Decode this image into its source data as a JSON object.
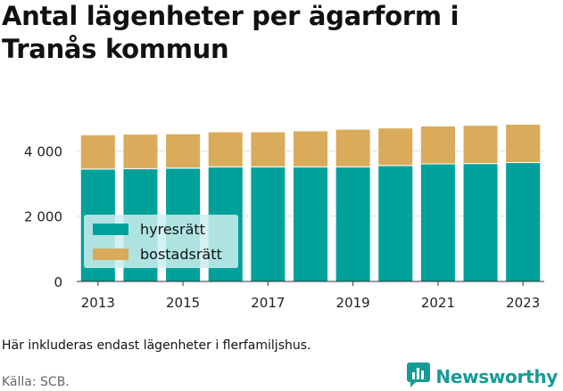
{
  "title_line1": "Antal lägenheter per ägarform i",
  "title_line2": "Tranås kommun",
  "footnote": "Här inkluderas endast lägenheter i flerfamiljshus.",
  "source": "Källa: SCB.",
  "brand": {
    "name": "Newsworthy",
    "logo_icon": "bar-chart-speech-bubble-icon",
    "color": "#159b95"
  },
  "colors": {
    "hyresratt": "#00a19a",
    "bostadsratt": "#d9ab5a",
    "grid": "#dddddd",
    "legend_bg": "#cdeeee"
  },
  "chart_data": {
    "type": "bar",
    "stacked": true,
    "categories": [
      "2013",
      "2014",
      "2015",
      "2016",
      "2017",
      "2018",
      "2019",
      "2020",
      "2021",
      "2022",
      "2023"
    ],
    "series": [
      {
        "name": "hyresrätt",
        "values": [
          3440,
          3450,
          3470,
          3510,
          3510,
          3510,
          3510,
          3550,
          3600,
          3610,
          3640
        ]
      },
      {
        "name": "bostadsrätt",
        "values": [
          1050,
          1060,
          1050,
          1070,
          1070,
          1100,
          1150,
          1150,
          1160,
          1170,
          1200
        ]
      }
    ],
    "y_ticks": [
      "0",
      "2 000",
      "4 000"
    ],
    "y_tick_values": [
      0,
      2000,
      4000
    ],
    "x_tick_labels": [
      "2013",
      "",
      "2015",
      "",
      "2017",
      "",
      "2019",
      "",
      "2021",
      "",
      "2023"
    ],
    "ylim": [
      0,
      4800
    ],
    "grid": true,
    "legend": [
      "hyresrätt",
      "bostadsrätt"
    ],
    "legend_position": "center-left"
  }
}
